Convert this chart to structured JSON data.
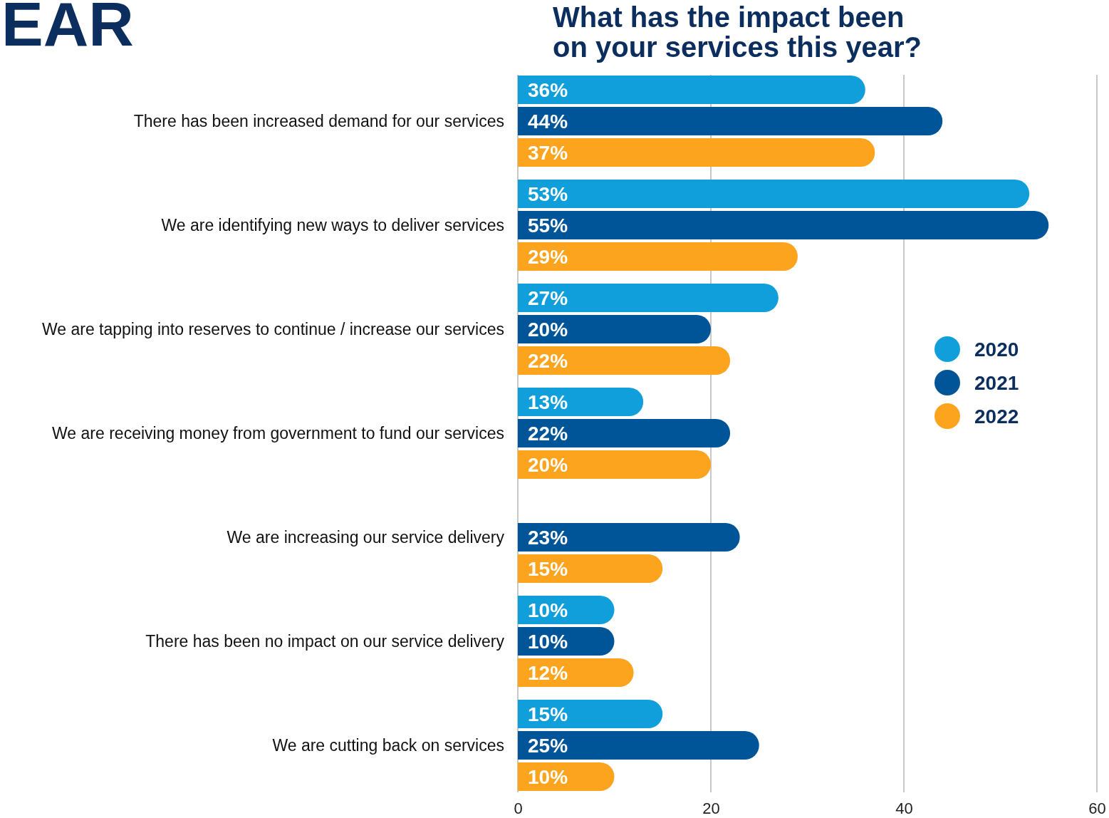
{
  "chart_data": {
    "type": "bar",
    "orientation": "horizontal",
    "title": "What has the impact been on your services this year?",
    "annotations": [
      "EAR"
    ],
    "categories": [
      "There has been increased demand for our services",
      "We are identifying new ways to deliver services",
      "We are tapping into reserves to continue / increase our services",
      "We are receiving money from government to fund our services",
      "We are increasing our service delivery",
      "There has been no impact on our service delivery",
      "We are cutting back on services"
    ],
    "series": [
      {
        "name": "2020",
        "color": "#109fdb",
        "values": [
          36,
          53,
          27,
          13,
          null,
          10,
          15
        ],
        "value_labels": [
          "36%",
          "53%",
          "27%",
          "13%",
          null,
          "10%",
          "15%"
        ]
      },
      {
        "name": "2021",
        "color": "#005599",
        "values": [
          44,
          55,
          20,
          22,
          23,
          10,
          25
        ],
        "value_labels": [
          "44%",
          "55%",
          "20%",
          "22%",
          "23%",
          "10%",
          "25%"
        ]
      },
      {
        "name": "2022",
        "color": "#fca41e",
        "values": [
          37,
          29,
          22,
          20,
          15,
          12,
          10
        ],
        "value_labels": [
          "37%",
          "29%",
          "22%",
          "20%",
          "15%",
          "12%",
          "10%"
        ]
      }
    ],
    "xlim": [
      0,
      60
    ],
    "xticks": [
      0,
      20,
      40,
      60
    ],
    "grid": "x",
    "legend": "right"
  }
}
